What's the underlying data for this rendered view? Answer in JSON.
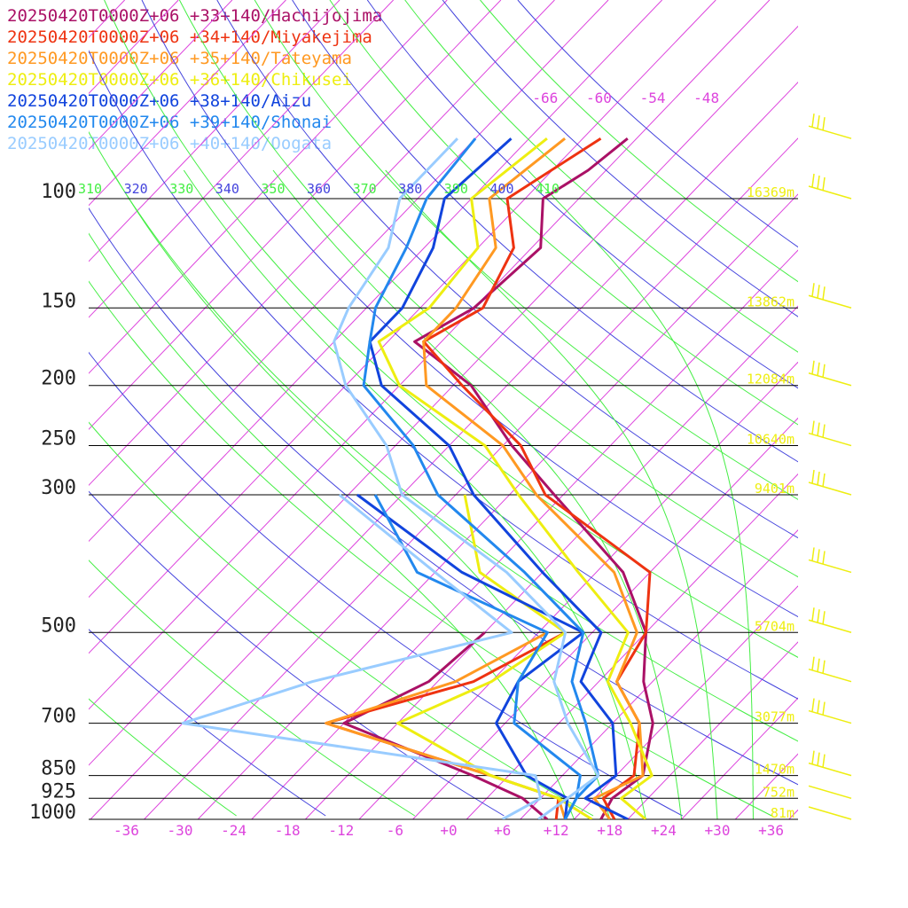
{
  "chart_data": {
    "type": "line",
    "title": "",
    "xlabel": "",
    "ylabel": "",
    "diagram": "skew-T log-p",
    "temperature_ticks": [
      "-36",
      "-30",
      "-24",
      "-18",
      "-12",
      "-6",
      "+0",
      "+6",
      "+12",
      "+18",
      "+24",
      "+30",
      "+36"
    ],
    "temperature_tick_values": [
      -36,
      -30,
      -24,
      -18,
      -12,
      -6,
      0,
      6,
      12,
      18,
      24,
      30,
      36
    ],
    "xlim": [
      -40,
      40
    ],
    "pressure_levels": [
      {
        "p": 100,
        "label": "100",
        "height": "16369m"
      },
      {
        "p": 150,
        "label": "150",
        "height": "13862m"
      },
      {
        "p": 200,
        "label": "200",
        "height": "12084m"
      },
      {
        "p": 250,
        "label": "250",
        "height": "10640m"
      },
      {
        "p": 300,
        "label": "300",
        "height": "9401m"
      },
      {
        "p": 500,
        "label": "500",
        "height": "5704m"
      },
      {
        "p": 700,
        "label": "700",
        "height": "3077m"
      },
      {
        "p": 850,
        "label": "850",
        "height": "1470m"
      },
      {
        "p": 925,
        "label": "925",
        "height": "752m"
      },
      {
        "p": 1000,
        "label": "1000",
        "height": "81m"
      }
    ],
    "isotherm_top_labels": [
      "-66",
      "-60",
      "-54",
      "-48"
    ],
    "theta_labels": [
      {
        "text": "310",
        "color": "#44ee44"
      },
      {
        "text": "320",
        "color": "#4444dd"
      },
      {
        "text": "330",
        "color": "#44ee44"
      },
      {
        "text": "340",
        "color": "#4444dd"
      },
      {
        "text": "350",
        "color": "#44ee44"
      },
      {
        "text": "360",
        "color": "#4444dd"
      },
      {
        "text": "370",
        "color": "#44ee44"
      },
      {
        "text": "380",
        "color": "#4444dd"
      },
      {
        "text": "390",
        "color": "#44ee44"
      },
      {
        "text": "400",
        "color": "#4444dd"
      },
      {
        "text": "410",
        "color": "#44ee44"
      }
    ],
    "series": [
      {
        "name": "20250420T0000Z+06 +33+140/Hachijojima",
        "color": "#aa1166",
        "temp_pressure": [
          1000,
          925,
          850,
          700,
          600,
          500,
          400,
          300,
          250,
          200,
          170,
          150,
          120,
          100,
          90,
          80
        ],
        "temperature": [
          17,
          16,
          17,
          12.5,
          7,
          2,
          -7,
          -23,
          -33,
          -44,
          -55,
          -52,
          -51,
          -56,
          -54,
          -53
        ],
        "dewpoint_pressure": [
          1000,
          925,
          850,
          700,
          600,
          500
        ],
        "dewpoint": [
          11,
          6,
          -2,
          -22,
          -17,
          -16
        ]
      },
      {
        "name": "20250420T0000Z+06 +34+140/Miyakejima",
        "color": "#ee3311",
        "temp_pressure": [
          1000,
          925,
          850,
          700,
          600,
          500,
          400,
          300,
          250,
          200,
          170,
          150,
          120,
          100,
          80
        ],
        "temperature": [
          18.5,
          15,
          16,
          11,
          4,
          2,
          -4,
          -24,
          -32,
          -45,
          -54,
          -51,
          -54,
          -60,
          -56
        ],
        "dewpoint_pressure": [
          1000,
          925,
          850,
          700,
          600,
          500
        ],
        "dewpoint": [
          12,
          10,
          0,
          -24,
          -12,
          -7
        ]
      },
      {
        "name": "20250420T0000Z+06 +35+140/Tateyama",
        "color": "#ff9922",
        "temp_pressure": [
          1000,
          925,
          850,
          700,
          600,
          500,
          400,
          300,
          250,
          200,
          170,
          150,
          120,
          100,
          80
        ],
        "temperature": [
          18,
          14,
          17,
          11,
          4,
          1,
          -8,
          -25,
          -34,
          -49,
          -54,
          -54,
          -56,
          -62,
          -60
        ],
        "dewpoint_pressure": [
          1000,
          925,
          850,
          700,
          600,
          500
        ],
        "dewpoint": [
          13,
          10,
          0,
          -24,
          -14,
          -9
        ]
      },
      {
        "name": "20250420T0000Z+06 +36+140/Chikusei",
        "color": "#eeee11",
        "temp_pressure": [
          1000,
          925,
          850,
          700,
          600,
          500,
          400,
          300,
          250,
          200,
          170,
          150,
          120,
          100,
          80
        ],
        "temperature": [
          22,
          17,
          18,
          10,
          3,
          0,
          -12,
          -27,
          -36,
          -52,
          -59,
          -57,
          -58,
          -64,
          -62
        ],
        "dewpoint_pressure": [
          1000,
          925,
          850,
          700,
          600,
          500,
          400,
          300
        ],
        "dewpoint": [
          16,
          10,
          0,
          -16,
          -10,
          -7,
          -23,
          -33
        ]
      },
      {
        "name": "20250420T0000Z+06 +38+140/Aizu",
        "color": "#1144dd",
        "temp_pressure": [
          1000,
          925,
          850,
          700,
          600,
          500,
          400,
          300,
          250,
          200,
          170,
          150,
          120,
          100,
          80
        ],
        "temperature": [
          20,
          13,
          14,
          8,
          0,
          -3,
          -16,
          -32,
          -40,
          -54,
          -60,
          -60,
          -63,
          -67,
          -66
        ],
        "dewpoint_pressure": [
          1000,
          925,
          850,
          700,
          600,
          500,
          400,
          300
        ],
        "dewpoint": [
          13,
          11,
          4,
          -5,
          -7,
          -5,
          -25,
          -45
        ]
      },
      {
        "name": "20250420T0000Z+06 +39+140/Shonai",
        "color": "#2288ee",
        "temp_pressure": [
          1000,
          925,
          850,
          700,
          600,
          500,
          400,
          300,
          250,
          200,
          170,
          150,
          120,
          100,
          80
        ],
        "temperature": [
          13,
          12,
          12,
          5,
          -1,
          -5,
          -18,
          -36,
          -44,
          -56,
          -60,
          -63,
          -66,
          -69,
          -70
        ],
        "dewpoint_pressure": [
          1000,
          925,
          850,
          700,
          600,
          500,
          400,
          300
        ],
        "dewpoint": [
          13,
          12,
          10,
          -3,
          -7,
          -9,
          -30,
          -43
        ]
      },
      {
        "name": "20250420T0000Z+06 +40+140/Oogata",
        "color": "#99ccff",
        "temp_pressure": [
          1000,
          925,
          850,
          700,
          600,
          500,
          400,
          300,
          250,
          200,
          170,
          150,
          120,
          100,
          80
        ],
        "temperature": [
          10,
          11,
          12,
          3,
          -3,
          -7,
          -20,
          -40,
          -47,
          -58,
          -64,
          -66,
          -68,
          -72,
          -72
        ],
        "dewpoint_pressure": [
          1000,
          925,
          850,
          700,
          600,
          500,
          400,
          300
        ],
        "dewpoint": [
          6,
          8,
          5,
          -40,
          -30,
          -13,
          -28,
          -47
        ]
      }
    ]
  }
}
